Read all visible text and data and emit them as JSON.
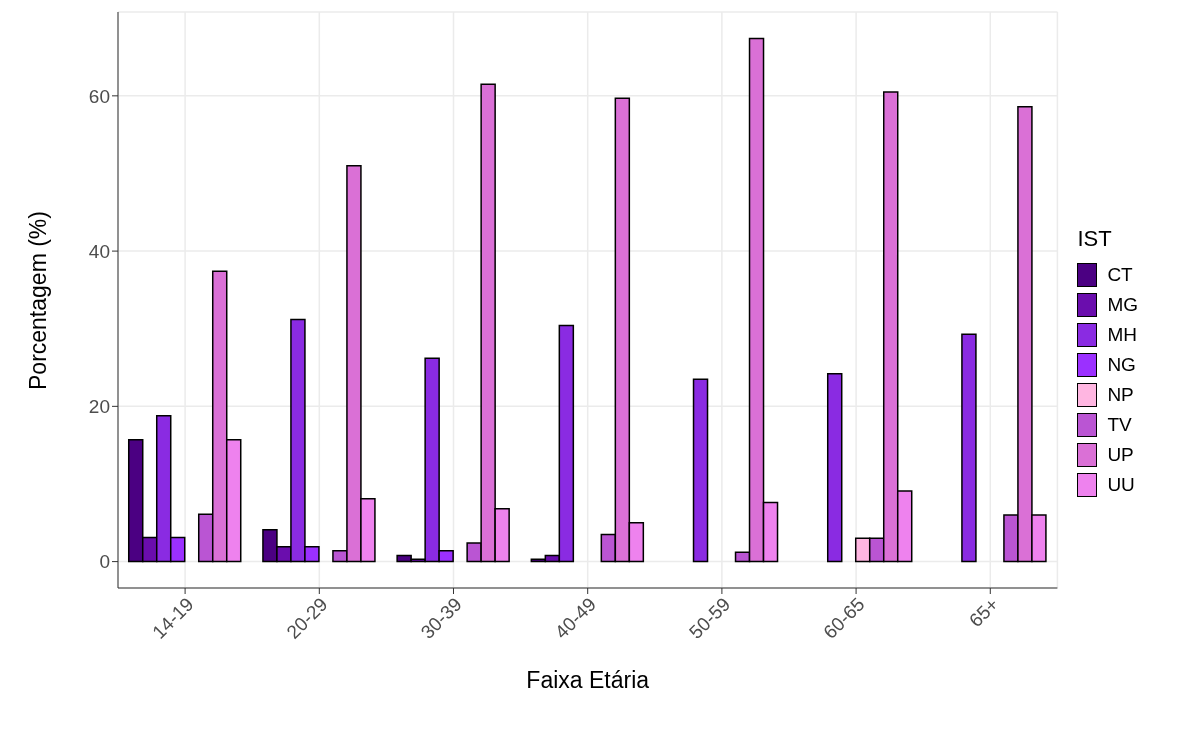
{
  "chart_data": {
    "type": "bar",
    "xlabel": "Faixa Etária",
    "ylabel": "Porcentagem (%)",
    "legend_title": "IST",
    "categories": [
      "14-19",
      "20-29",
      "30-39",
      "40-49",
      "50-59",
      "60-65",
      "65+"
    ],
    "series": [
      {
        "name": "CT",
        "color": "#4b0082",
        "values": [
          15.7,
          4.1,
          0.8,
          0.3,
          null,
          null,
          null
        ]
      },
      {
        "name": "MG",
        "color": "#6a0dad",
        "values": [
          3.1,
          1.9,
          0.3,
          0.8,
          null,
          null,
          null
        ]
      },
      {
        "name": "MH",
        "color": "#8a2be2",
        "values": [
          18.8,
          31.2,
          26.2,
          30.4,
          23.5,
          24.2,
          29.3
        ]
      },
      {
        "name": "NG",
        "color": "#9b30ff",
        "values": [
          3.1,
          1.9,
          1.4,
          null,
          null,
          null,
          null
        ]
      },
      {
        "name": "NP",
        "color": "#ffb6e1",
        "values": [
          null,
          null,
          null,
          null,
          null,
          3.0,
          null
        ]
      },
      {
        "name": "TV",
        "color": "#ba55d3",
        "values": [
          6.1,
          1.4,
          2.4,
          3.5,
          1.2,
          3.0,
          6.0
        ]
      },
      {
        "name": "UP",
        "color": "#da70d6",
        "values": [
          37.4,
          51.0,
          61.5,
          59.7,
          67.4,
          60.5,
          58.6
        ]
      },
      {
        "name": "UU",
        "color": "#ee82ee",
        "values": [
          15.7,
          8.1,
          6.8,
          5.0,
          7.6,
          9.1,
          6.0
        ]
      }
    ],
    "ylim": [
      -3.4,
      70.8
    ],
    "yticks": [
      0,
      20,
      40,
      60
    ],
    "grid": true,
    "legend": "right"
  }
}
